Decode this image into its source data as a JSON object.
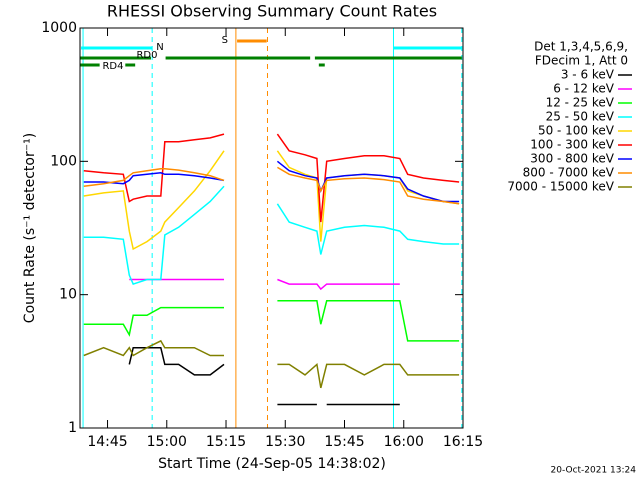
{
  "chart_data": {
    "type": "line",
    "title": "RHESSI Observing Summary Count Rates",
    "x_label": "Start Time (24-Sep-05 14:38:02)",
    "y_label": "Count Rate (s⁻¹ detector⁻¹)",
    "footer": "20-Oct-2021 13:24",
    "legend_header": [
      "Det 1,3,4,5,6,9,",
      "FDecim 1, Att 0"
    ],
    "log_y": true,
    "xlim": [
      878.03,
      975
    ],
    "ylim": [
      1,
      1000
    ],
    "xticks": [
      {
        "value": 885,
        "label": "14:45"
      },
      {
        "value": 900,
        "label": "15:00"
      },
      {
        "value": 915,
        "label": "15:15"
      },
      {
        "value": 930,
        "label": "15:30"
      },
      {
        "value": 945,
        "label": "15:45"
      },
      {
        "value": 960,
        "label": "16:00"
      },
      {
        "value": 975,
        "label": "16:15"
      }
    ],
    "yticks": [
      1,
      10,
      100,
      1000
    ],
    "vlines": [
      {
        "x": 878.8,
        "color": "#00ffff",
        "dashed": false
      },
      {
        "x": 896.3,
        "color": "#00ffff",
        "dashed": true
      },
      {
        "x": 917.5,
        "color": "#ff8c00",
        "dashed": false
      },
      {
        "x": 925.5,
        "color": "#ff8c00",
        "dashed": true
      },
      {
        "x": 957.4,
        "color": "#00ffff",
        "dashed": false
      },
      {
        "x": 974.7,
        "color": "#00ffff",
        "dashed": true
      }
    ],
    "annotations": [
      {
        "text": "N",
        "color": "#00ffff",
        "spans": [
          [
            878.3,
            896.3
          ],
          [
            957.4,
            974.7
          ]
        ]
      },
      {
        "text": "S",
        "color": "#ff8c00",
        "spans": [
          [
            917.8,
            925.3
          ]
        ]
      },
      {
        "text": "RD0",
        "color": "#008000",
        "spans": [
          [
            878.03,
            896
          ],
          [
            899.7,
            936.3
          ],
          [
            937.5,
            974.7
          ]
        ]
      },
      {
        "text": "RD4",
        "color": "#008000",
        "spans": [
          [
            878.03,
            883
          ],
          [
            889.5,
            892
          ],
          [
            938.5,
            940
          ]
        ]
      }
    ],
    "x": [
      879,
      884,
      889,
      890.5,
      891.5,
      895,
      898.5,
      899.5,
      903,
      907,
      911,
      914.5,
      921,
      928,
      931,
      935,
      938,
      939,
      940.5,
      945,
      950,
      955,
      959,
      961,
      965,
      970,
      974
    ],
    "series": [
      {
        "name": "3 - 6 keV",
        "color": "#000000",
        "values": [
          null,
          null,
          null,
          3,
          4,
          4,
          4,
          3,
          3,
          2.5,
          2.5,
          3,
          null,
          1.5,
          1.5,
          1.5,
          1.5,
          null,
          1.5,
          1.5,
          1.5,
          1.5,
          1.5,
          null,
          null,
          null,
          null
        ]
      },
      {
        "name": "6 - 12 keV",
        "color": "#ff00ff",
        "values": [
          null,
          null,
          null,
          13,
          13,
          13,
          13,
          13,
          13,
          13,
          13,
          13,
          null,
          13,
          12,
          12,
          12,
          11,
          12,
          12,
          12,
          12,
          12,
          null,
          null,
          null,
          null
        ]
      },
      {
        "name": "12 - 25 keV",
        "color": "#00ff00",
        "values": [
          6,
          6,
          6,
          5,
          7,
          7,
          8,
          8,
          8,
          8,
          8,
          8,
          null,
          9,
          9,
          9,
          9,
          6,
          9,
          9,
          9,
          9,
          9,
          4.5,
          4.5,
          4.5,
          4.5
        ]
      },
      {
        "name": "25 - 50 keV",
        "color": "#00ffff",
        "values": [
          27,
          27,
          26,
          14,
          12,
          13,
          13,
          28,
          32,
          40,
          50,
          65,
          null,
          48,
          35,
          32,
          30,
          20,
          30,
          32,
          33,
          32,
          30,
          26,
          25,
          24,
          24
        ]
      },
      {
        "name": "50 - 100 keV",
        "color": "#ffd700",
        "values": [
          55,
          58,
          60,
          30,
          22,
          25,
          30,
          35,
          45,
          60,
          85,
          120,
          null,
          120,
          90,
          80,
          75,
          25,
          75,
          78,
          80,
          78,
          75,
          60,
          55,
          50,
          48
        ]
      },
      {
        "name": "100 - 300 keV",
        "color": "#ff0000",
        "values": [
          85,
          82,
          80,
          50,
          52,
          55,
          55,
          140,
          140,
          145,
          150,
          160,
          null,
          160,
          120,
          112,
          105,
          35,
          100,
          105,
          110,
          110,
          105,
          80,
          75,
          72,
          70
        ]
      },
      {
        "name": "300 - 800 keV",
        "color": "#0000ff",
        "values": [
          70,
          70,
          68,
          72,
          78,
          80,
          82,
          80,
          80,
          78,
          75,
          72,
          null,
          100,
          85,
          78,
          75,
          60,
          75,
          78,
          80,
          78,
          75,
          62,
          55,
          50,
          50
        ]
      },
      {
        "name": "800 - 7000 keV",
        "color": "#ff8c00",
        "values": [
          65,
          68,
          72,
          78,
          82,
          85,
          88,
          88,
          86,
          82,
          78,
          72,
          null,
          90,
          80,
          75,
          72,
          60,
          72,
          74,
          75,
          73,
          70,
          55,
          52,
          50,
          48
        ]
      },
      {
        "name": "7000 - 15000 keV",
        "color": "#808000",
        "values": [
          3.5,
          4,
          3.5,
          4,
          3.5,
          4,
          4.5,
          4,
          4,
          4,
          3.5,
          3.5,
          null,
          3,
          3,
          2.5,
          3,
          2,
          3,
          3,
          2.5,
          3,
          3,
          2.5,
          2.5,
          2.5,
          2.5
        ]
      }
    ]
  }
}
